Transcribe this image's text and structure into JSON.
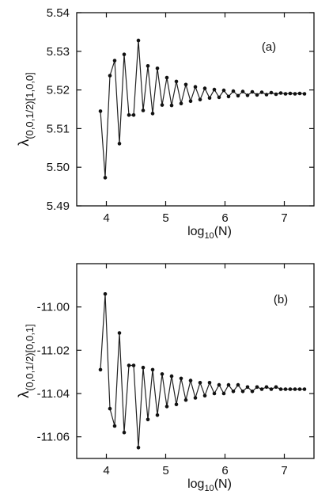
{
  "chart_data": [
    {
      "type": "line",
      "panel_label": "(a)",
      "xlabel": {
        "base": "log",
        "sub": "10",
        "tail": "(N)"
      },
      "ylabel": {
        "symbol": "λ",
        "sub": "(0,0,1/2)[1,0,0]"
      },
      "xlim": [
        3.5,
        7.5
      ],
      "ylim": [
        5.49,
        5.54
      ],
      "xticks": [
        4,
        5,
        6,
        7
      ],
      "yticks": [
        5.49,
        5.5,
        5.51,
        5.52,
        5.53,
        5.54
      ],
      "ytick_labels": [
        "5.49",
        "5.50",
        "5.51",
        "5.52",
        "5.53",
        "5.54"
      ],
      "grid": false,
      "series": [
        {
          "x": [
            3.9,
            3.98,
            4.06,
            4.14,
            4.22,
            4.3,
            4.38,
            4.46,
            4.54,
            4.62,
            4.7,
            4.78,
            4.86,
            4.94,
            5.02,
            5.1,
            5.18,
            5.26,
            5.34,
            5.42,
            5.5,
            5.58,
            5.66,
            5.74,
            5.82,
            5.9,
            5.98,
            6.06,
            6.14,
            6.22,
            6.3,
            6.38,
            6.46,
            6.54,
            6.62,
            6.7,
            6.78,
            6.86,
            6.94,
            7.02,
            7.1,
            7.18,
            7.26,
            7.34
          ],
          "y": [
            5.5145,
            5.4973,
            5.5237,
            5.5276,
            5.5061,
            5.5292,
            5.5135,
            5.5135,
            5.5328,
            5.5147,
            5.5262,
            5.5139,
            5.5256,
            5.5161,
            5.5232,
            5.516,
            5.5222,
            5.5165,
            5.5214,
            5.5171,
            5.5208,
            5.5175,
            5.5204,
            5.5179,
            5.5201,
            5.5181,
            5.5199,
            5.5183,
            5.5197,
            5.5185,
            5.5196,
            5.5186,
            5.5195,
            5.5187,
            5.5194,
            5.5188,
            5.5193,
            5.5189,
            5.5192,
            5.519,
            5.5191,
            5.519,
            5.5191,
            5.519
          ]
        }
      ]
    },
    {
      "type": "line",
      "panel_label": "(b)",
      "xlabel": {
        "base": "log",
        "sub": "10",
        "tail": "(N)"
      },
      "ylabel": {
        "symbol": "λ",
        "sub": "(0,0,1/2)[0,0,1]"
      },
      "xlim": [
        3.5,
        7.5
      ],
      "ylim": [
        -11.07,
        -10.98
      ],
      "xticks": [
        4,
        5,
        6,
        7
      ],
      "yticks": [
        -11.06,
        -11.04,
        -11.02,
        -11.0
      ],
      "ytick_labels": [
        "-11.06",
        "-11.04",
        "-11.02",
        "-11.00"
      ],
      "grid": false,
      "series": [
        {
          "x": [
            3.9,
            3.98,
            4.06,
            4.14,
            4.22,
            4.3,
            4.38,
            4.46,
            4.54,
            4.62,
            4.7,
            4.78,
            4.86,
            4.94,
            5.02,
            5.1,
            5.18,
            5.26,
            5.34,
            5.42,
            5.5,
            5.58,
            5.66,
            5.74,
            5.82,
            5.9,
            5.98,
            6.06,
            6.14,
            6.22,
            6.3,
            6.38,
            6.46,
            6.54,
            6.62,
            6.7,
            6.78,
            6.86,
            6.94,
            7.02,
            7.1,
            7.18,
            7.26,
            7.34
          ],
          "y": [
            -11.029,
            -10.994,
            -11.047,
            -11.055,
            -11.012,
            -11.058,
            -11.027,
            -11.027,
            -11.065,
            -11.028,
            -11.052,
            -11.029,
            -11.05,
            -11.031,
            -11.046,
            -11.032,
            -11.045,
            -11.033,
            -11.043,
            -11.034,
            -11.042,
            -11.035,
            -11.041,
            -11.035,
            -11.04,
            -11.036,
            -11.04,
            -11.036,
            -11.039,
            -11.036,
            -11.039,
            -11.037,
            -11.039,
            -11.037,
            -11.038,
            -11.037,
            -11.038,
            -11.037,
            -11.038,
            -11.038,
            -11.038,
            -11.038,
            -11.038,
            -11.038
          ]
        }
      ]
    }
  ]
}
